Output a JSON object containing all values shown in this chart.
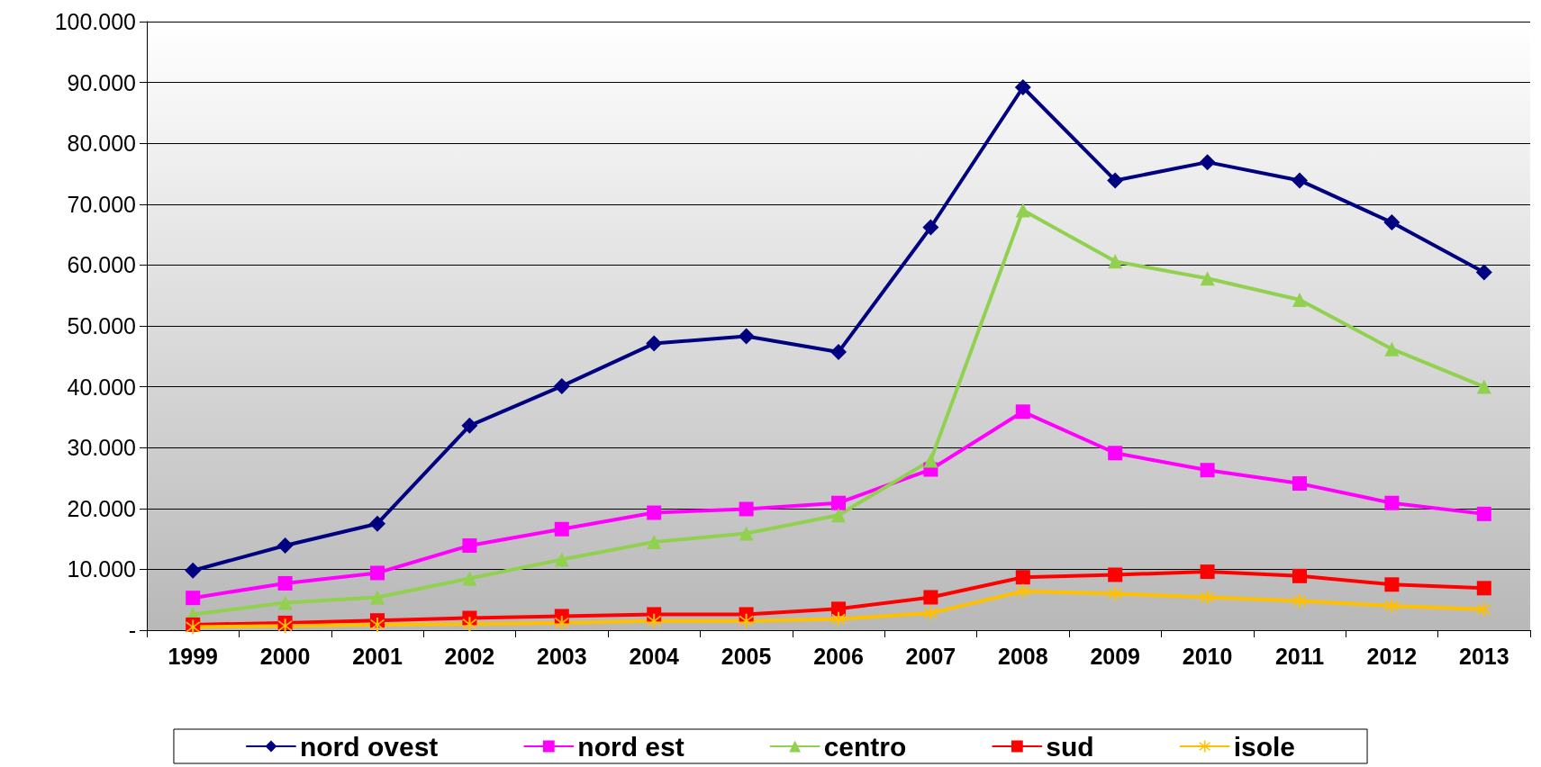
{
  "chart_data": {
    "type": "line",
    "categories": [
      "1999",
      "2000",
      "2001",
      "2002",
      "2003",
      "2004",
      "2005",
      "2006",
      "2007",
      "2008",
      "2009",
      "2010",
      "2011",
      "2012",
      "2013"
    ],
    "ylim": [
      0,
      100000
    ],
    "yticks": [
      {
        "value": 0,
        "label": "-"
      },
      {
        "value": 10000,
        "label": "10.000"
      },
      {
        "value": 20000,
        "label": "20.000"
      },
      {
        "value": 30000,
        "label": "30.000"
      },
      {
        "value": 40000,
        "label": "40.000"
      },
      {
        "value": 50000,
        "label": "50.000"
      },
      {
        "value": 60000,
        "label": "60.000"
      },
      {
        "value": 70000,
        "label": "70.000"
      },
      {
        "value": 80000,
        "label": "80.000"
      },
      {
        "value": 90000,
        "label": "90.000"
      },
      {
        "value": 100000,
        "label": "100.000"
      }
    ],
    "grid": "y",
    "legend": "bottom",
    "line_style": "solid",
    "series": [
      {
        "name": "nord ovest",
        "color": "#000080",
        "marker": "diamond",
        "values": [
          9800,
          13900,
          17500,
          33600,
          40100,
          47100,
          48300,
          45700,
          66200,
          89200,
          73900,
          76900,
          73900,
          67000,
          58800
        ]
      },
      {
        "name": "nord est",
        "color": "#ff00ff",
        "marker": "square",
        "values": [
          5300,
          7700,
          9400,
          13900,
          16600,
          19300,
          19900,
          20900,
          26400,
          35900,
          29100,
          26300,
          24100,
          20900,
          19100
        ]
      },
      {
        "name": "centro",
        "color": "#92d050",
        "marker": "triangle",
        "values": [
          2600,
          4500,
          5400,
          8500,
          11600,
          14500,
          15900,
          18900,
          27900,
          69000,
          60600,
          57800,
          54300,
          46200,
          40000
        ]
      },
      {
        "name": "sud",
        "color": "#ff0000",
        "marker": "square",
        "values": [
          900,
          1200,
          1600,
          2000,
          2300,
          2600,
          2600,
          3500,
          5400,
          8700,
          9100,
          9600,
          8900,
          7500,
          6900
        ]
      },
      {
        "name": "isole",
        "color": "#ffc000",
        "marker": "star",
        "values": [
          500,
          700,
          900,
          1000,
          1200,
          1500,
          1500,
          1800,
          2800,
          6400,
          6000,
          5400,
          4800,
          4000,
          3400
        ]
      }
    ]
  }
}
